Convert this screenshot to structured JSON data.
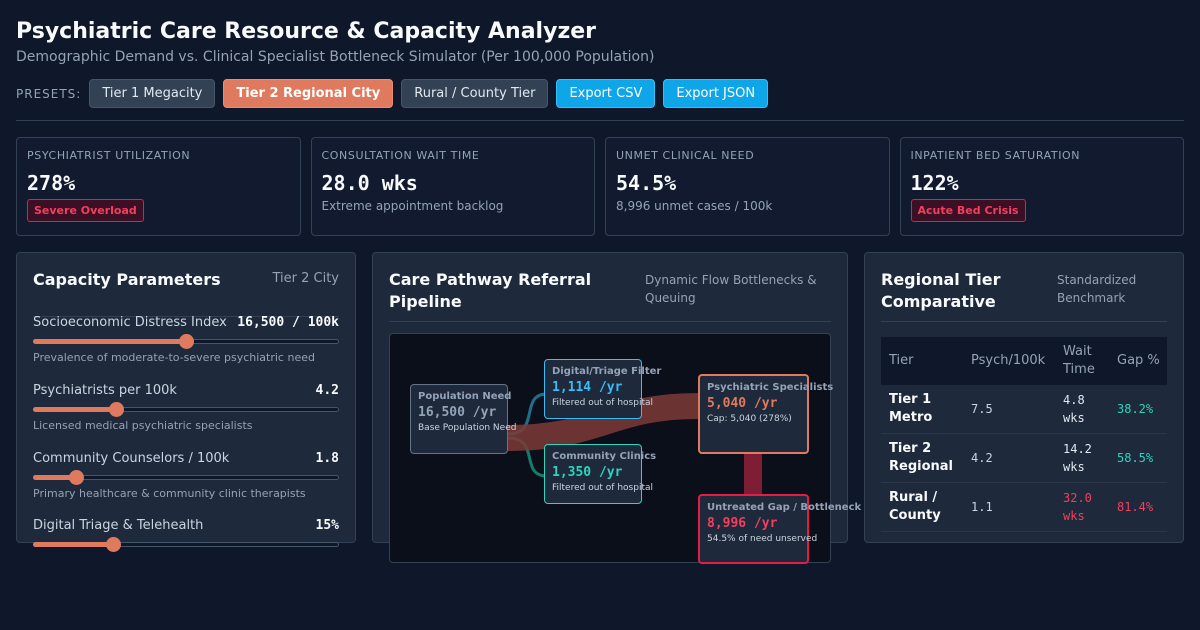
{
  "header": {
    "title": "Psychiatric Care Resource & Capacity Analyzer",
    "subtitle": "Demographic Demand vs. Clinical Specialist Bottleneck Simulator (Per 100,000 Population)"
  },
  "presets": {
    "label": "PRESETS:",
    "buttons": [
      "Tier 1 Megacity",
      "Tier 2 Regional City",
      "Rural / County Tier"
    ],
    "active": "Tier 2 Regional City",
    "export_csv": "Export CSV",
    "export_json": "Export JSON"
  },
  "kpis": [
    {
      "label": "PSYCHIATRIST UTILIZATION",
      "value": "278%",
      "badge": "Severe Overload"
    },
    {
      "label": "CONSULTATION WAIT TIME",
      "value": "28.0 wks",
      "note": "Extreme appointment backlog"
    },
    {
      "label": "UNMET CLINICAL NEED",
      "value": "54.5%",
      "note": "8,996 unmet cases / 100k"
    },
    {
      "label": "INPATIENT BED SATURATION",
      "value": "122%",
      "badge": "Acute Bed Crisis"
    }
  ],
  "parameters": {
    "title": "Capacity Parameters",
    "tier": "Tier 2 City",
    "items": [
      {
        "name": "Socioeconomic Distress Index",
        "value": "16,500 / 100k",
        "desc": "Prevalence of moderate-to-severe psychiatric need",
        "level": 0.5
      },
      {
        "name": "Psychiatrists per 100k",
        "value": "4.2",
        "desc": "Licensed medical psychiatric specialists",
        "level": 0.27
      },
      {
        "name": "Community Counselors / 100k",
        "value": "1.8",
        "desc": "Primary healthcare & community clinic therapists",
        "level": 0.14
      },
      {
        "name": "Digital Triage & Telehealth",
        "value": "15%",
        "desc": "",
        "level": 0.26
      }
    ]
  },
  "pipeline": {
    "title": "Care Pathway Referral Pipeline",
    "subtitle": "Dynamic Flow Bottlenecks & Queuing",
    "nodes": {
      "population": {
        "title": "Population Need",
        "value": "16,500 /yr",
        "note": "Base Population Need"
      },
      "digital": {
        "title": "Digital/Triage Filter",
        "value": "1,114 /yr",
        "note": "Filtered out of hospital"
      },
      "community": {
        "title": "Community Clinics",
        "value": "1,350 /yr",
        "note": "Filtered out of hospital"
      },
      "specialists": {
        "title": "Psychiatric Specialists",
        "value": "5,040 /yr",
        "note": "Cap: 5,040 (278%)"
      },
      "untreated": {
        "title": "Untreated Gap / Bottleneck",
        "value": "8,996 /yr",
        "note": "54.5% of need unserved"
      }
    }
  },
  "regional": {
    "title": "Regional Tier Comparative",
    "subtitle": "Standardized Benchmark",
    "headers": [
      "Tier",
      "Psych/100k",
      "Wait Time",
      "Gap %"
    ],
    "rows": [
      {
        "tier": "Tier 1 Metro",
        "psych": "7.5",
        "wait": "4.8 wks",
        "gap": "38.2%",
        "critical": false
      },
      {
        "tier": "Tier 2 Regional",
        "psych": "4.2",
        "wait": "14.2 wks",
        "gap": "58.5%",
        "critical": false
      },
      {
        "tier": "Rural / County",
        "psych": "1.1",
        "wait": "32.0 wks",
        "gap": "81.4%",
        "critical": true
      }
    ]
  },
  "colors": {
    "accent": "#e07a5f",
    "export": "#0ea5e9",
    "critical": "#f43f5e",
    "ok": "#2dd4bf",
    "digital": "#38bdf8"
  }
}
